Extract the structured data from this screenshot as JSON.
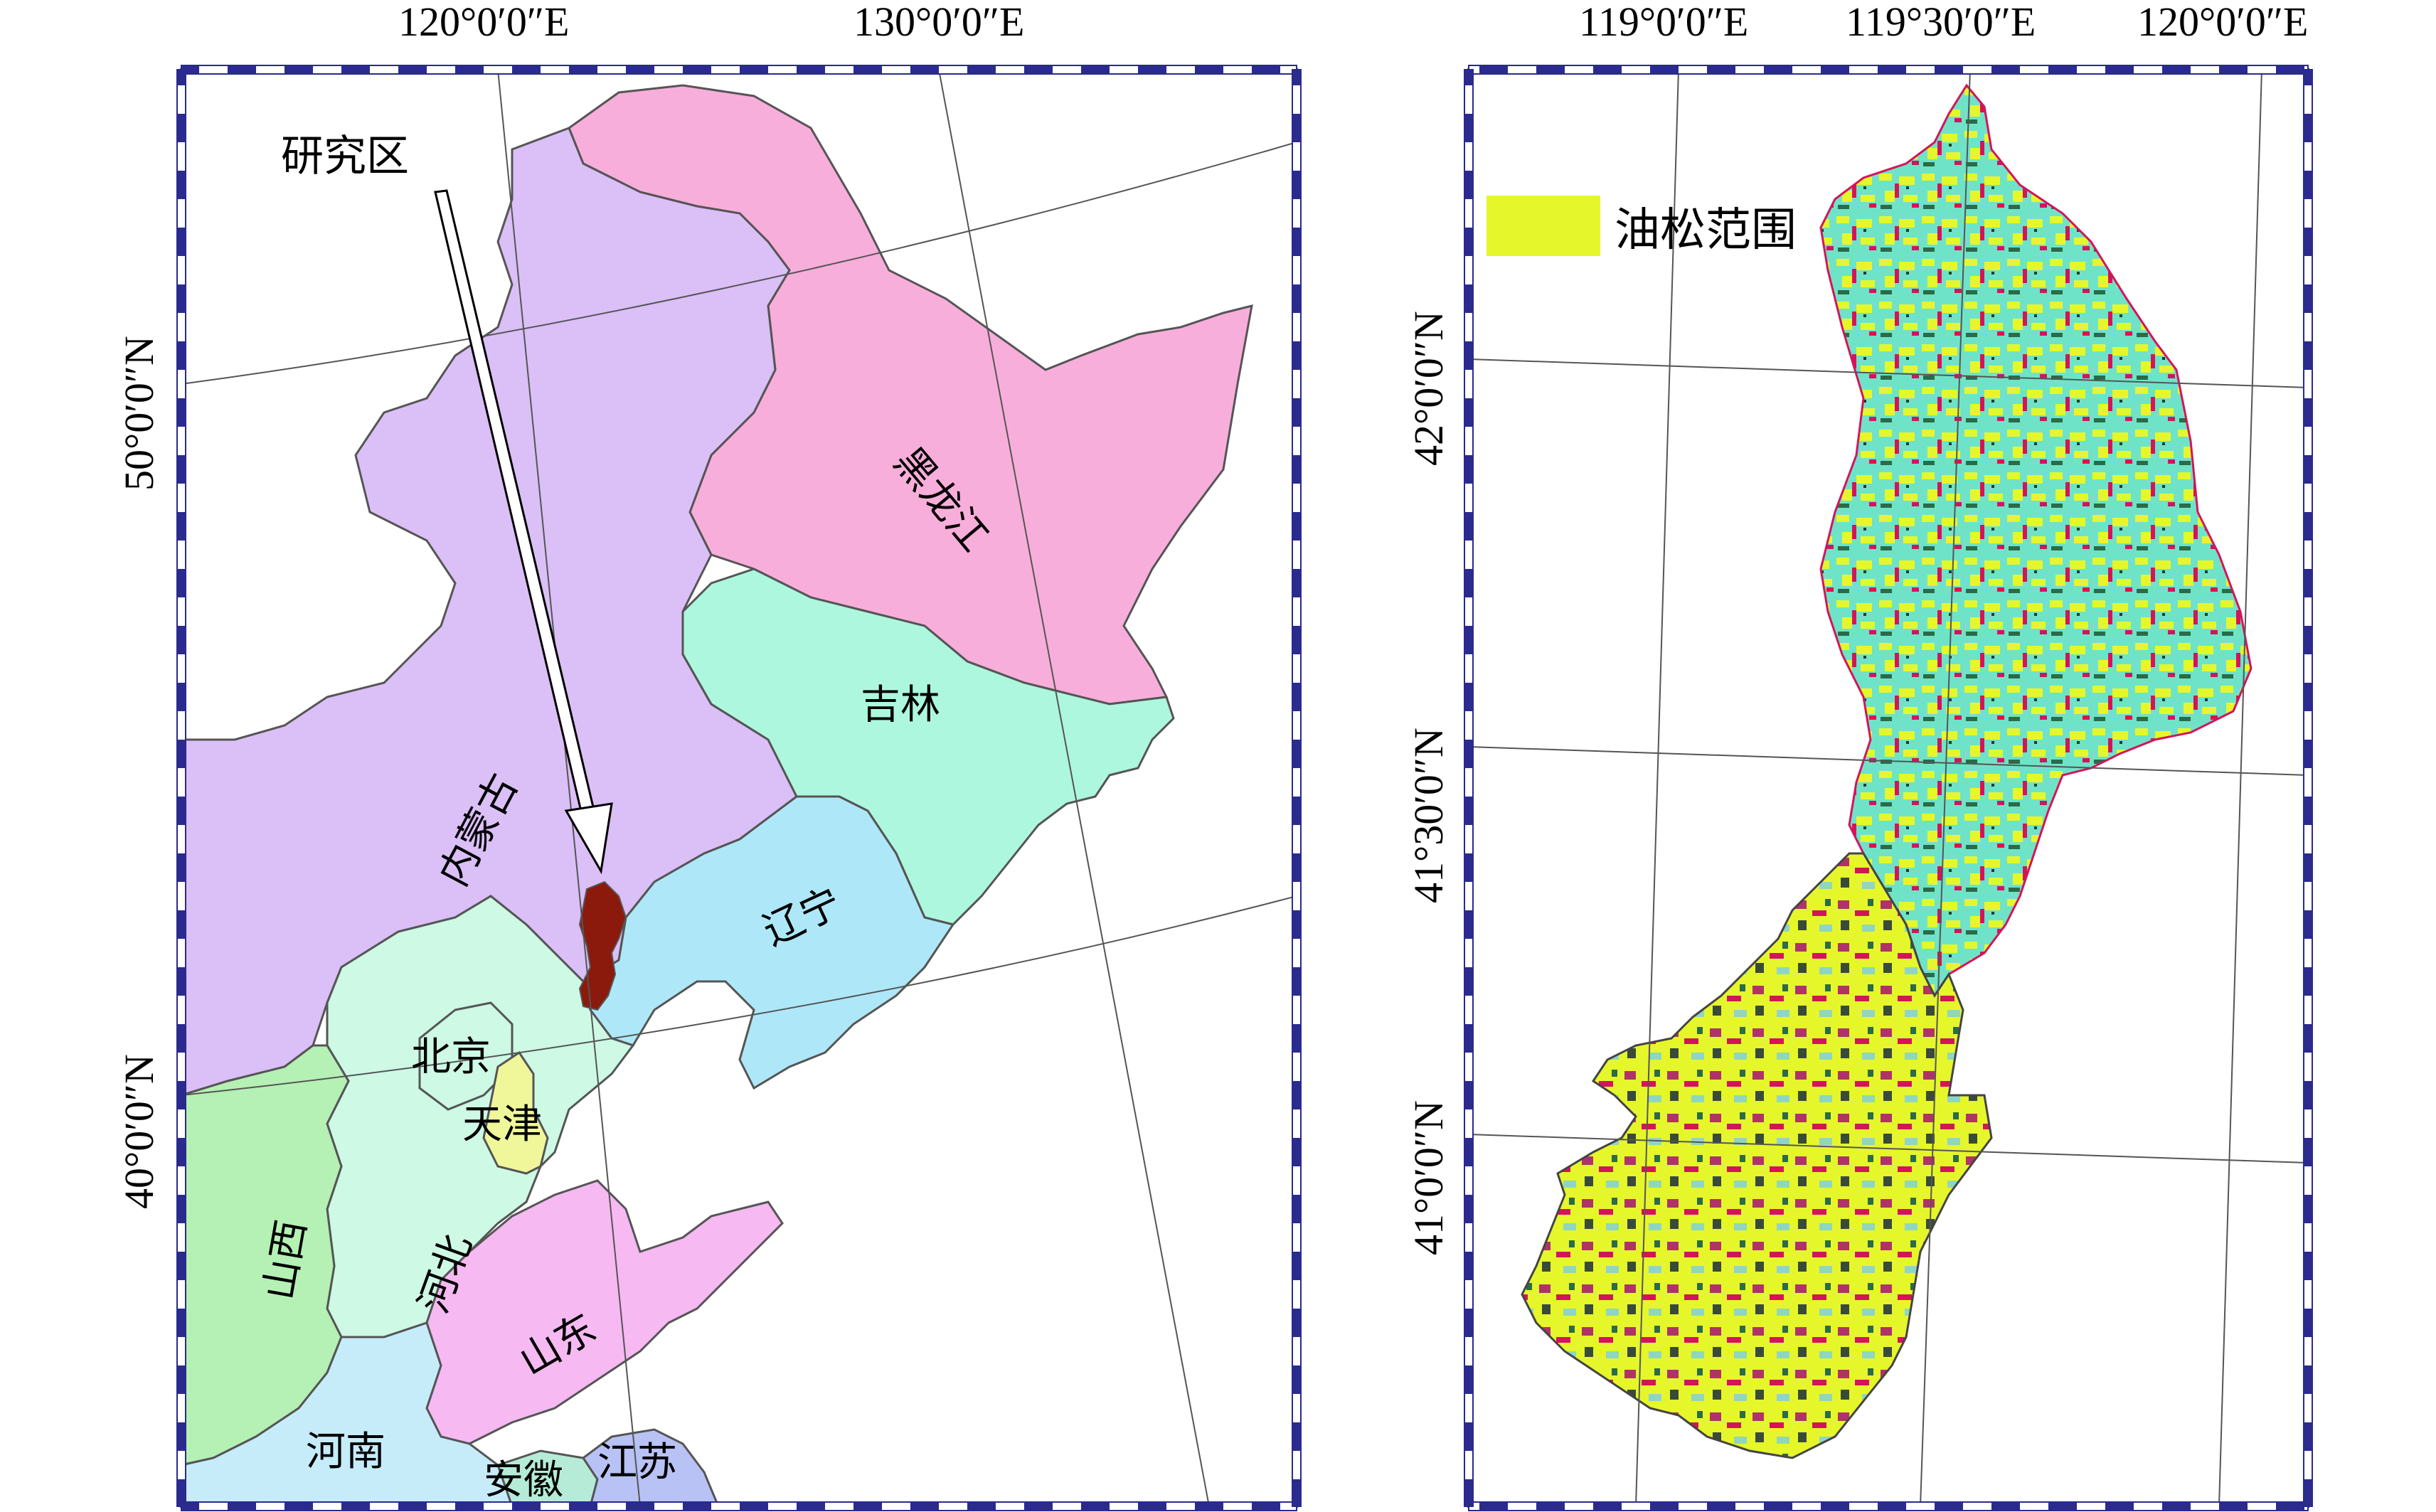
{
  "left_map": {
    "top_coords": [
      "120°0′0″E",
      "130°0′0″E"
    ],
    "left_coords": [
      "50°0′0″N",
      "40°0′0″N"
    ],
    "study_area_label": "研究区",
    "provinces": {
      "heilongjiang": "黑龙江",
      "neimenggu": "内蒙古",
      "jilin": "吉林",
      "liaoning": "辽宁",
      "beijing": "北京",
      "tianjin": "天津",
      "hebei": "河北",
      "shanxi": "山西",
      "shandong": "山东",
      "henan": "河南",
      "anhui": "安徽",
      "jiangsu": "江苏"
    },
    "colors": {
      "heilongjiang": "#f8aedb",
      "neimenggu": "#dbbff7",
      "jilin": "#adf7df",
      "liaoning": "#aee8f8",
      "hebei": "#cdf9e5",
      "beijing": "#cdf9e5",
      "tianjin": "#f0f79a",
      "shanxi": "#b5f0b5",
      "shandong": "#f6b9f2",
      "henan": "#c6ecfa",
      "anhui": "#b6ecd7",
      "jiangsu": "#b8c2f4",
      "study_area": "#8b1a0c"
    }
  },
  "right_map": {
    "top_coords": [
      "119°0′0″E",
      "119°30′0″E",
      "120°0′0″E"
    ],
    "left_coords": [
      "42°0′0″N",
      "41°30′0″N",
      "41°0′0″N"
    ],
    "legend_label": "油松范围",
    "colors": {
      "pine": "#e5f72a",
      "base_cyan": "#6fe3c8",
      "red": "#d4145a"
    }
  },
  "frame_color": "#2a2a8f"
}
